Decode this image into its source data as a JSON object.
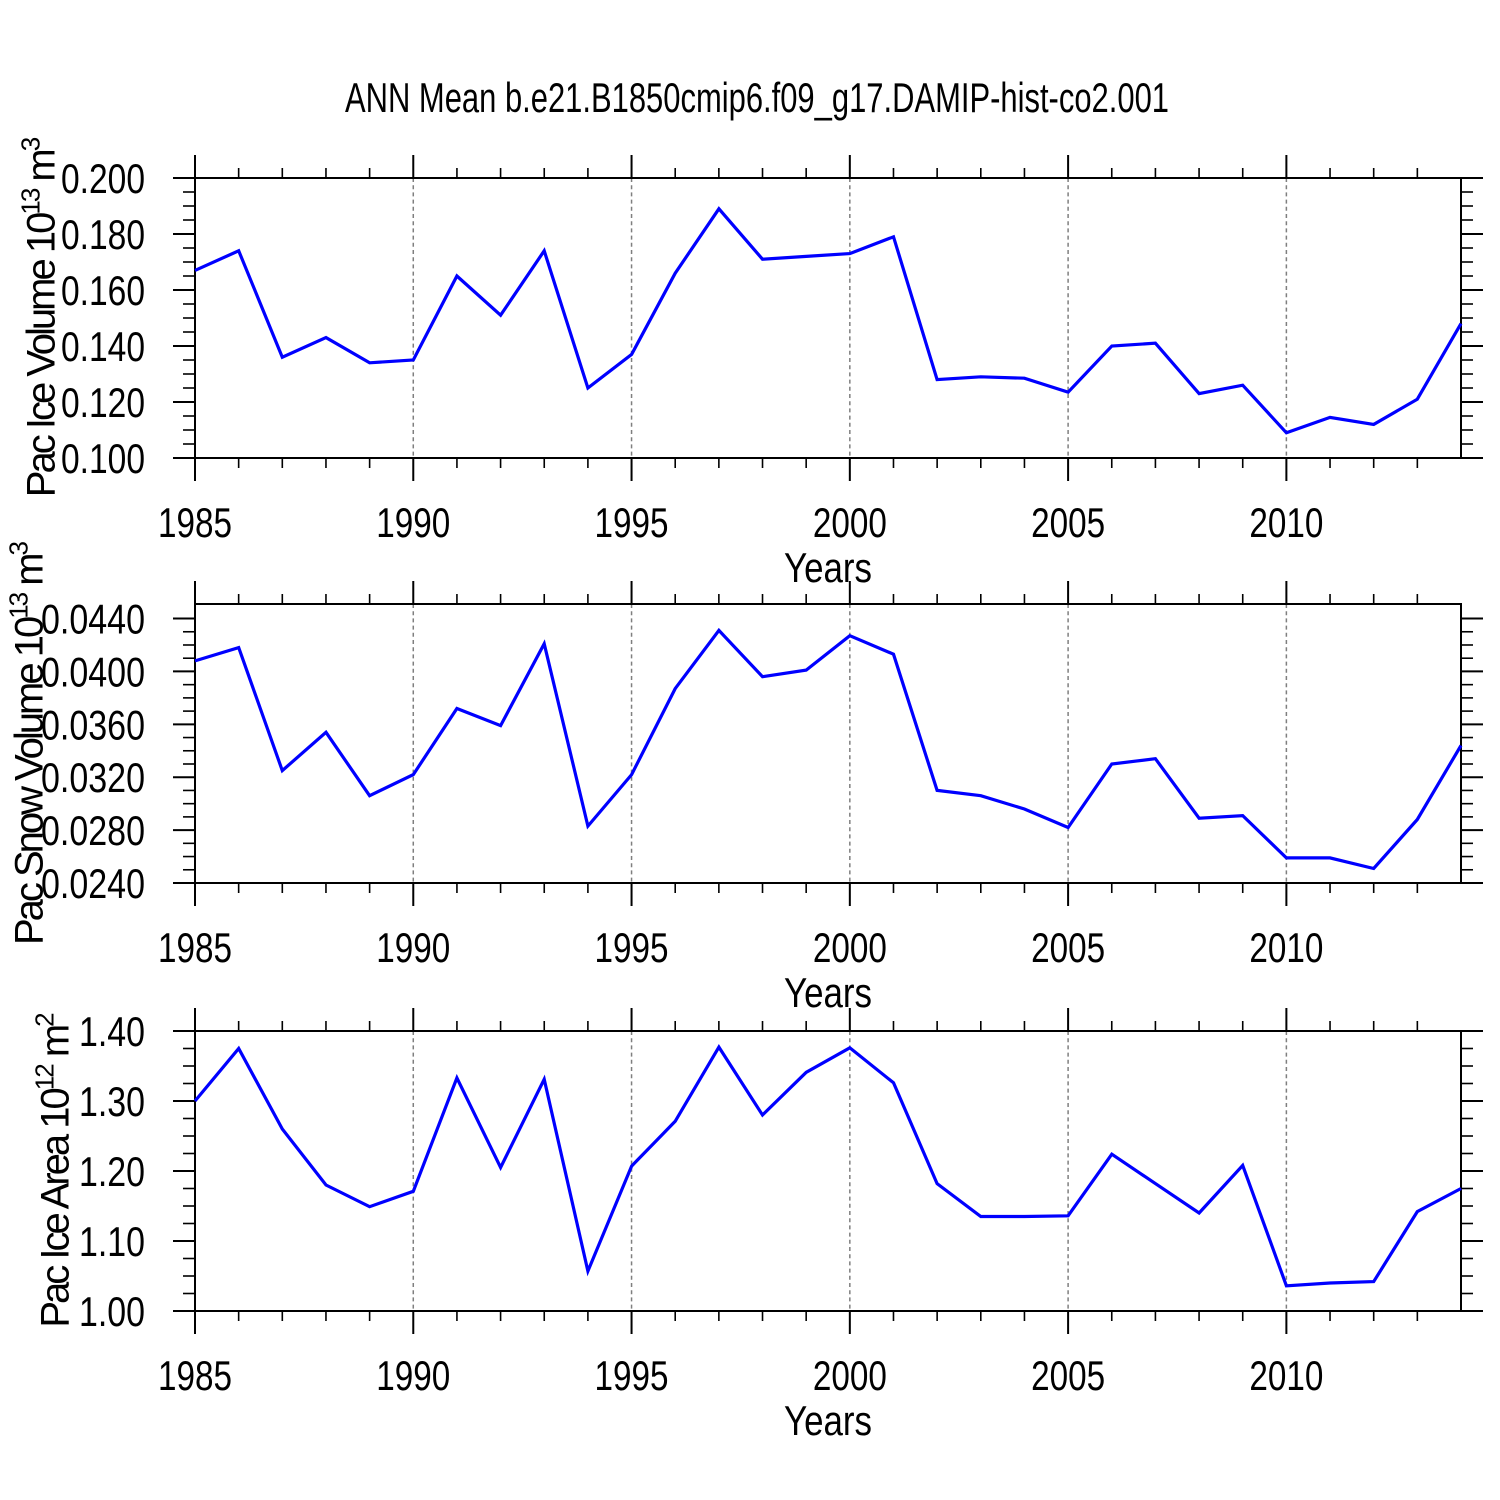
{
  "title": "ANN Mean b.e21.B1850cmip6.f09_g17.DAMIP-hist-co2.001",
  "figure": {
    "background": "#ffffff",
    "line_color": "#0000ff",
    "frame_color": "#000000",
    "grid_color": "#7f7f7f"
  },
  "x_axis": {
    "label": "Years",
    "start": 1985,
    "end": 2014,
    "tick_labels": [
      "1985",
      "1990",
      "1995",
      "2000",
      "2005",
      "2010"
    ],
    "major_ticks": [
      1985,
      1990,
      1995,
      2000,
      2005,
      2010
    ],
    "grid_years": [
      1990,
      1995,
      2000,
      2005,
      2010
    ]
  },
  "chart_data": [
    {
      "type": "line",
      "name": "pac-ice-volume",
      "ylabel": "Pac Ice Volume 10^13 m^3",
      "ylabel_parts": [
        {
          "t": "Pac Ice Volume 10"
        },
        {
          "t": "13",
          "sup": true
        },
        {
          "t": " m"
        },
        {
          "t": "3",
          "sup": true
        }
      ],
      "xlabel": "Years",
      "ytick_labels": [
        "0.200",
        "0.180",
        "0.160",
        "0.140",
        "0.120",
        "0.100"
      ],
      "ytick_values": [
        0.2,
        0.18,
        0.16,
        0.14,
        0.12,
        0.1
      ],
      "y_minor_step": 0.005,
      "ylim": [
        0.1,
        0.2
      ],
      "y_frame_top": 0.2,
      "grid": "vertical-dashed",
      "legend": "none",
      "years": [
        1985,
        1986,
        1987,
        1988,
        1989,
        1990,
        1991,
        1992,
        1993,
        1994,
        1995,
        1996,
        1997,
        1998,
        1999,
        2000,
        2001,
        2002,
        2003,
        2004,
        2005,
        2006,
        2007,
        2008,
        2009,
        2010,
        2011,
        2012,
        2013,
        2014
      ],
      "values": [
        0.167,
        0.174,
        0.136,
        0.143,
        0.134,
        0.135,
        0.165,
        0.151,
        0.174,
        0.125,
        0.137,
        0.166,
        0.189,
        0.171,
        0.172,
        0.173,
        0.179,
        0.128,
        0.129,
        0.1285,
        0.1235,
        0.14,
        0.141,
        0.123,
        0.126,
        0.109,
        0.1145,
        0.112,
        0.121,
        0.148
      ]
    },
    {
      "type": "line",
      "name": "pac-snow-volume",
      "ylabel": "Pac Snow Volume 10^13 m^3",
      "ylabel_parts": [
        {
          "t": "Pac Snow Volume 10"
        },
        {
          "t": "13",
          "sup": true
        },
        {
          "t": " m"
        },
        {
          "t": "3",
          "sup": true
        }
      ],
      "xlabel": "Years",
      "ytick_labels": [
        "0.0440",
        "0.0400",
        "0.0360",
        "0.0320",
        "0.0280",
        "0.0240"
      ],
      "ytick_values": [
        0.044,
        0.04,
        0.036,
        0.032,
        0.028,
        0.024
      ],
      "y_minor_step": 0.001,
      "ylim": [
        0.024,
        0.0451
      ],
      "y_frame_top": 0.0451,
      "grid": "vertical-dashed",
      "legend": "none",
      "years": [
        1985,
        1986,
        1987,
        1988,
        1989,
        1990,
        1991,
        1992,
        1993,
        1994,
        1995,
        1996,
        1997,
        1998,
        1999,
        2000,
        2001,
        2002,
        2003,
        2004,
        2005,
        2006,
        2007,
        2008,
        2009,
        2010,
        2011,
        2012,
        2013,
        2014
      ],
      "values": [
        0.0408,
        0.0418,
        0.0325,
        0.0354,
        0.0306,
        0.0322,
        0.0372,
        0.0359,
        0.0421,
        0.0283,
        0.0322,
        0.0387,
        0.0431,
        0.0396,
        0.0401,
        0.0427,
        0.0413,
        0.031,
        0.0306,
        0.0296,
        0.0282,
        0.033,
        0.0334,
        0.0289,
        0.0291,
        0.0259,
        0.0259,
        0.0251,
        0.0288,
        0.0344
      ]
    },
    {
      "type": "line",
      "name": "pac-ice-area",
      "ylabel": "Pac Ice Area 10^12 m^2",
      "ylabel_parts": [
        {
          "t": "Pac Ice Area 10"
        },
        {
          "t": "12",
          "sup": true
        },
        {
          "t": " m"
        },
        {
          "t": "2",
          "sup": true
        }
      ],
      "xlabel": "Years",
      "ytick_labels": [
        "1.40",
        "1.30",
        "1.20",
        "1.10",
        "1.00"
      ],
      "ytick_values": [
        1.4,
        1.3,
        1.2,
        1.1,
        1.0
      ],
      "y_minor_step": 0.025,
      "ylim": [
        1.0,
        1.4
      ],
      "y_frame_top": 1.4,
      "grid": "vertical-dashed",
      "legend": "none",
      "years": [
        1985,
        1986,
        1987,
        1988,
        1989,
        1990,
        1991,
        1992,
        1993,
        1994,
        1995,
        1996,
        1997,
        1998,
        1999,
        2000,
        2001,
        2002,
        2003,
        2004,
        2005,
        2006,
        2007,
        2008,
        2009,
        2010,
        2011,
        2012,
        2013,
        2014
      ],
      "values": [
        1.3,
        1.375,
        1.26,
        1.18,
        1.149,
        1.171,
        1.333,
        1.205,
        1.331,
        1.057,
        1.207,
        1.271,
        1.377,
        1.28,
        1.341,
        1.376,
        1.326,
        1.182,
        1.135,
        1.135,
        1.136,
        1.224,
        1.182,
        1.14,
        1.208,
        1.036,
        1.04,
        1.042,
        1.142,
        1.175
      ]
    }
  ]
}
